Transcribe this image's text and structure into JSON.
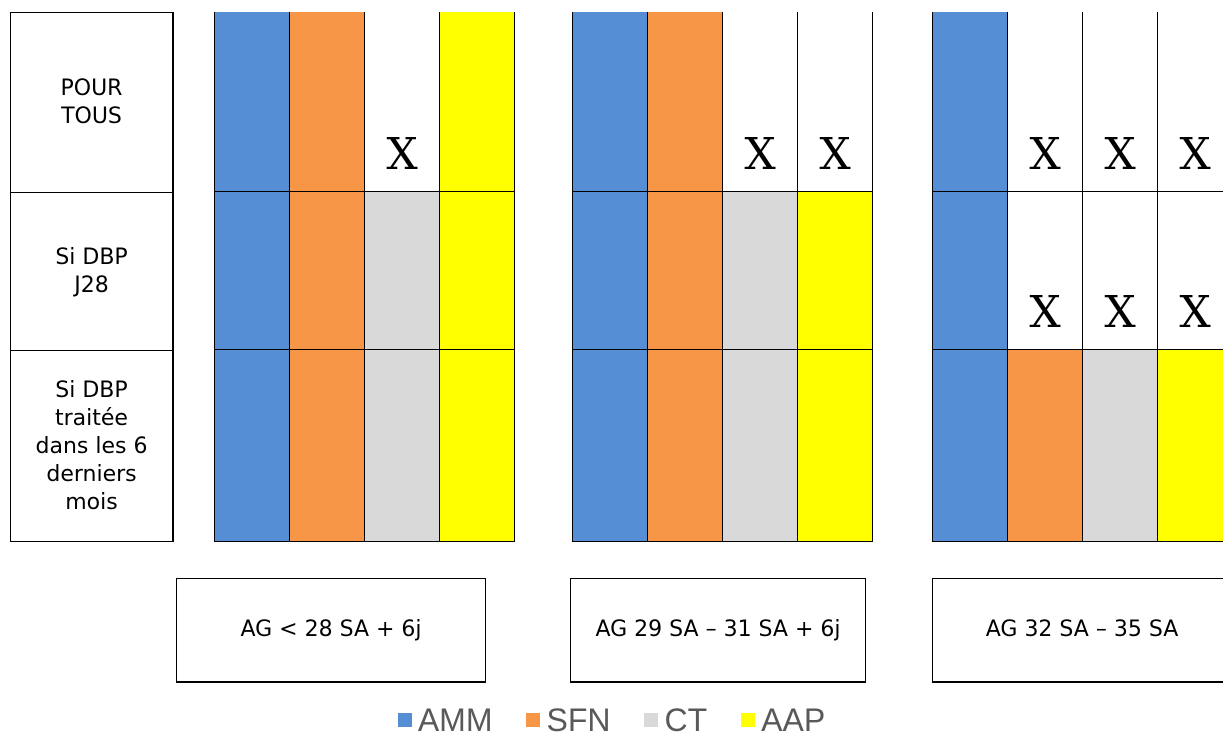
{
  "colors": {
    "AMM": "#558ed5",
    "SFN": "#f79646",
    "CT": "#d9d9d9",
    "AAP": "#ffff00",
    "empty": "#ffffff"
  },
  "row_labels": [
    "POUR\nTOUS",
    "Si DBP\nJ28",
    "Si DBP\ntraitée\ndans les 6\nderniers\nmois"
  ],
  "groups": [
    {
      "age_label": "AG < 28 SA + 6j",
      "rows": [
        [
          "AMM",
          "SFN",
          "X",
          "AAP"
        ],
        [
          "AMM",
          "SFN",
          "CT",
          "AAP"
        ],
        [
          "AMM",
          "SFN",
          "CT",
          "AAP"
        ]
      ]
    },
    {
      "age_label": "AG 29 SA – 31 SA + 6j",
      "rows": [
        [
          "AMM",
          "SFN",
          "X",
          "X"
        ],
        [
          "AMM",
          "SFN",
          "CT",
          "AAP"
        ],
        [
          "AMM",
          "SFN",
          "CT",
          "AAP"
        ]
      ]
    },
    {
      "age_label": "AG 32 SA – 35 SA",
      "rows": [
        [
          "AMM",
          "X",
          "X",
          "X"
        ],
        [
          "AMM",
          "X",
          "X",
          "X"
        ],
        [
          "AMM",
          "SFN",
          "CT",
          "AAP"
        ]
      ]
    }
  ],
  "mark_text": "X",
  "legend": [
    {
      "key": "AMM",
      "label": "AMM"
    },
    {
      "key": "SFN",
      "label": "SFN"
    },
    {
      "key": "CT",
      "label": "CT"
    },
    {
      "key": "AAP",
      "label": "AAP"
    }
  ]
}
